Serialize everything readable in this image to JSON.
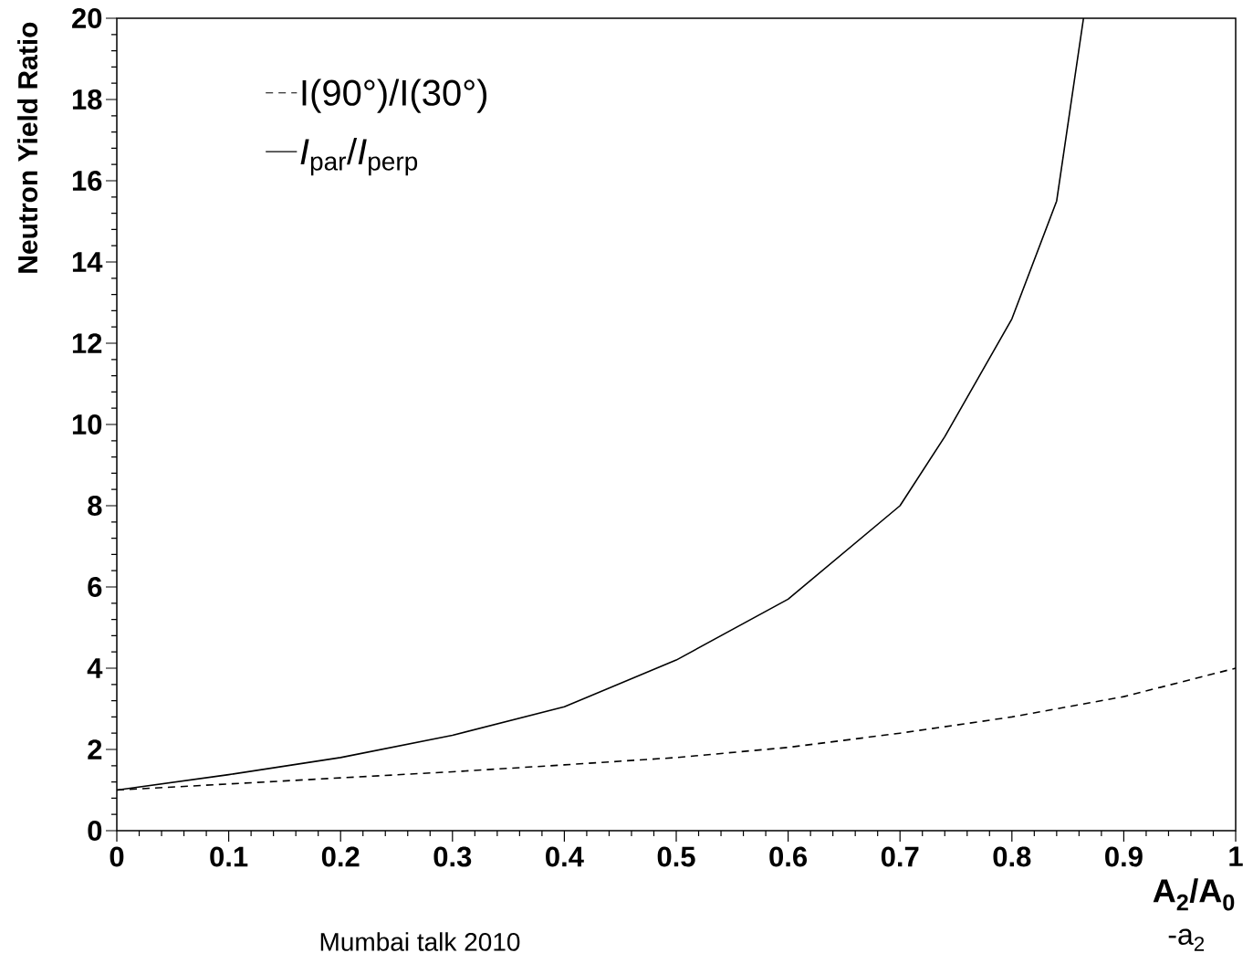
{
  "chart_data": {
    "type": "line",
    "ylabel": "Neutron Yield Ratio",
    "xlabel": "A$_{2}$/A$_{0}$",
    "annotations": [
      "-a$_{2}$",
      "Mumbai talk 2010"
    ],
    "xlim": [
      0,
      1
    ],
    "ylim": [
      0,
      20
    ],
    "xticks": [
      0,
      0.1,
      0.2,
      0.3,
      0.4,
      0.5,
      0.6,
      0.7,
      0.8,
      0.9,
      1
    ],
    "yticks": [
      0,
      2,
      4,
      6,
      8,
      10,
      12,
      14,
      16,
      18,
      20
    ],
    "grid": false,
    "legend": "top left",
    "marker": "none",
    "series": [
      {
        "name": "I(90°)/I(30°)",
        "color": "#000000",
        "line_style": "dashed",
        "x": [
          0,
          0.1,
          0.2,
          0.3,
          0.4,
          0.5,
          0.6,
          0.7,
          0.8,
          0.9,
          1
        ],
        "values": [
          1.0,
          1.15,
          1.3,
          1.45,
          1.62,
          1.8,
          2.05,
          2.4,
          2.8,
          3.3,
          4.0
        ]
      },
      {
        "name": "*I*$_{par}$/*I*$_{perp}$",
        "color": "#000000",
        "line_style": "solid",
        "x": [
          0,
          0.1,
          0.2,
          0.3,
          0.4,
          0.5,
          0.6,
          0.7,
          0.74,
          0.8,
          0.84,
          0.864
        ],
        "values": [
          1.0,
          1.38,
          1.8,
          2.35,
          3.05,
          4.2,
          5.7,
          8.0,
          9.7,
          12.6,
          15.5,
          20.0
        ]
      }
    ]
  }
}
